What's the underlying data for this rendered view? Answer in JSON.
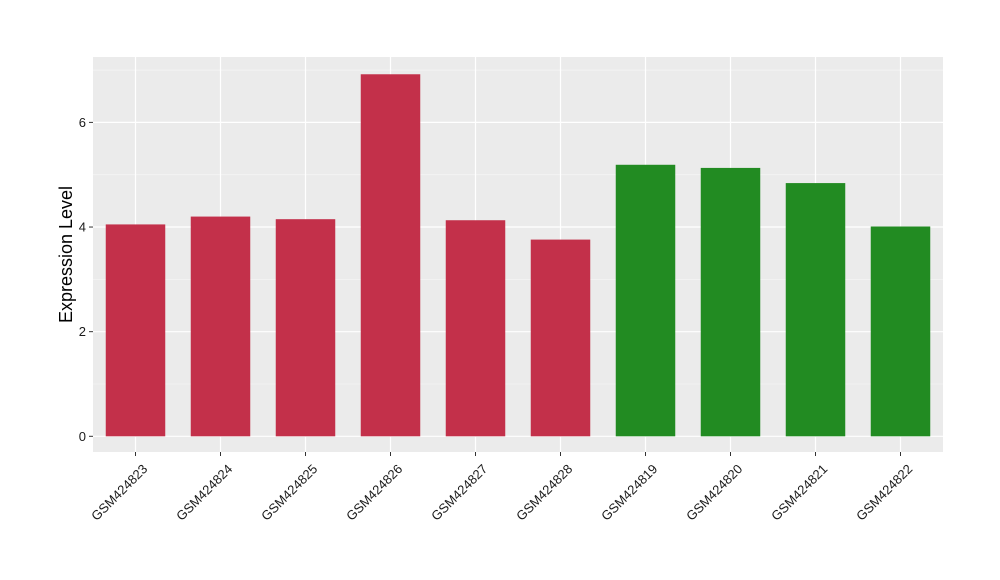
{
  "chart_data": {
    "type": "bar",
    "ylabel": "Expression Level",
    "xlabel": "",
    "ylim": [
      -0.3,
      7.25
    ],
    "yticks": [
      0,
      2,
      4,
      6
    ],
    "grid": true,
    "background": "#ebebeb",
    "bars": [
      {
        "category": "GSM424823",
        "value": 4.05,
        "color": "#c3304a"
      },
      {
        "category": "GSM424824",
        "value": 4.2,
        "color": "#c3304a"
      },
      {
        "category": "GSM424825",
        "value": 4.15,
        "color": "#c3304a"
      },
      {
        "category": "GSM424826",
        "value": 6.92,
        "color": "#c3304a"
      },
      {
        "category": "GSM424827",
        "value": 4.13,
        "color": "#c3304a"
      },
      {
        "category": "GSM424828",
        "value": 3.76,
        "color": "#c3304a"
      },
      {
        "category": "GSM424819",
        "value": 5.19,
        "color": "#228b22"
      },
      {
        "category": "GSM424820",
        "value": 5.13,
        "color": "#228b22"
      },
      {
        "category": "GSM424821",
        "value": 4.84,
        "color": "#228b22"
      },
      {
        "category": "GSM424822",
        "value": 4.01,
        "color": "#228b22"
      }
    ]
  }
}
